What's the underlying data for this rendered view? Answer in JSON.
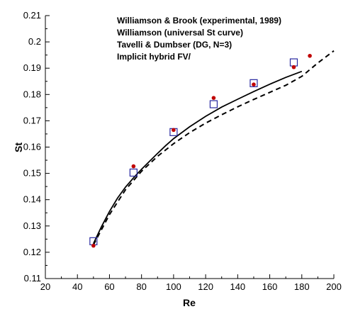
{
  "chart_data": {
    "type": "scatter",
    "xlabel": "Re",
    "ylabel": "St",
    "xlim": [
      20,
      200
    ],
    "ylim": [
      0.11,
      0.21
    ],
    "xticks": [
      "20",
      "40",
      "60",
      "80",
      "100",
      "120",
      "140",
      "160",
      "180",
      "200"
    ],
    "yticks": [
      "0.11",
      "0.12",
      "0.13",
      "0.14",
      "0.15",
      "0.16",
      "0.17",
      "0.18",
      "0.19",
      "0.2",
      "0.21"
    ],
    "grid": false,
    "legend_position": "top-right",
    "legend": [
      "Williamson & Brook  (experimental, 1989)",
      "Williamson  (universal St curve)",
      "Tavelli & Dumbser  (DG, N=3)",
      "Implicit hybrid FV/"
    ],
    "series": [
      {
        "style": "red-dots",
        "color": "#c00000",
        "x": [
          50,
          75,
          100,
          125,
          150,
          175,
          185
        ],
        "y": [
          0.1225,
          0.1527,
          0.1665,
          0.1787,
          0.1838,
          0.1904,
          0.1947
        ]
      },
      {
        "style": "dashed-line",
        "color": "#000000",
        "x": [
          50,
          60,
          70,
          80,
          90,
          100,
          110,
          120,
          130,
          140,
          150,
          160,
          170,
          180,
          190,
          200
        ],
        "y": [
          0.1228,
          0.1343,
          0.1438,
          0.1508,
          0.1565,
          0.1613,
          0.1655,
          0.1691,
          0.1723,
          0.1753,
          0.1781,
          0.1808,
          0.1835,
          0.1869,
          0.192,
          0.1966
        ]
      },
      {
        "style": "blue-open-squares",
        "color": "#2828a0",
        "x": [
          50,
          75,
          100,
          125,
          150,
          175
        ],
        "y": [
          0.1242,
          0.1503,
          0.1657,
          0.1763,
          0.1843,
          0.1922
        ]
      },
      {
        "style": "solid-line",
        "color": "#000000",
        "x": [
          50,
          55,
          60,
          65,
          70,
          75,
          80,
          85,
          90,
          95,
          100,
          110,
          120,
          130,
          140,
          150,
          160,
          170,
          180
        ],
        "y": [
          0.1233,
          0.1297,
          0.1355,
          0.1406,
          0.1448,
          0.1483,
          0.1516,
          0.1546,
          0.1576,
          0.1605,
          0.1632,
          0.1677,
          0.1717,
          0.1752,
          0.1782,
          0.1811,
          0.1839,
          0.1865,
          0.1888
        ]
      }
    ]
  }
}
